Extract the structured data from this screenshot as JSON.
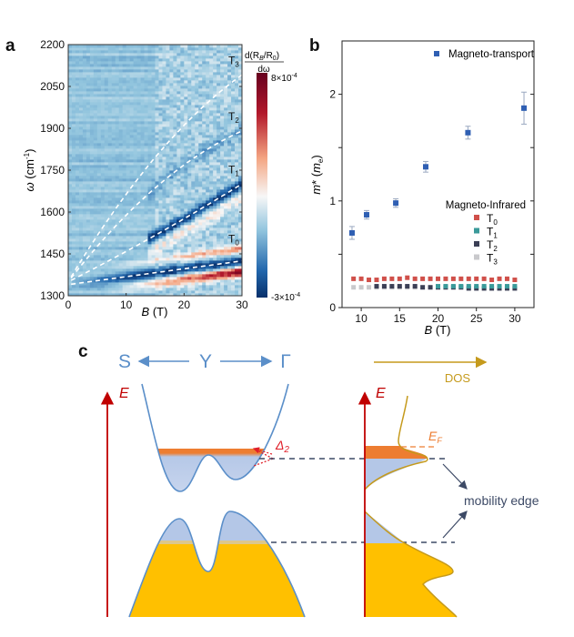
{
  "panel_labels": {
    "a": "a",
    "b": "b",
    "c": "c"
  },
  "chart_data": [
    {
      "panel": "a",
      "type": "heatmap",
      "xlabel_italic": "B",
      "xlabel_unit": " (T)",
      "ylabel_italic": "ω",
      "ylabel_unit": " (cm",
      "ylabel_sup": "-1",
      "ylabel_close": ")",
      "xlim": [
        0,
        30
      ],
      "ylim": [
        1300,
        2200
      ],
      "xticks": [
        "0",
        "10",
        "20",
        "30"
      ],
      "yticks": [
        "1300",
        "1450",
        "1600",
        "1750",
        "1900",
        "2050",
        "2200"
      ],
      "colorbar": {
        "label_num": "d(R",
        "label_num_sub1": "B",
        "label_num_mid": "/R",
        "label_num_sub2": "0",
        "label_num_close": ")",
        "label_den": "dω",
        "max_label": "8×10",
        "max_exp": "-4",
        "min_label": "-3×10",
        "min_exp": "-4",
        "range": [
          -0.0003,
          0.0008
        ],
        "colors": [
          "#08306b",
          "#2166ac",
          "#92c5de",
          "#f7f7f7",
          "#f4a582",
          "#b2182b",
          "#67001f"
        ]
      },
      "transitions": [
        {
          "name": "T",
          "sub": "0",
          "omega_at_30T": 1425
        },
        {
          "name": "T",
          "sub": "1",
          "omega_at_30T": 1700
        },
        {
          "name": "T",
          "sub": "2",
          "omega_at_30T": 1890
        },
        {
          "name": "T",
          "sub": "3",
          "omega_at_30T": 2090
        }
      ],
      "fit_line_color": "#ffffff"
    },
    {
      "panel": "b",
      "type": "scatter",
      "xlabel_italic": "B",
      "xlabel_unit": " (T)",
      "ylabel_italic": "m",
      "ylabel_mid": "* (",
      "ylabel_italic2": "m",
      "ylabel_sub": "e",
      "ylabel_close": ")",
      "xlim": [
        7.5,
        32.5
      ],
      "ylim": [
        0,
        2.5
      ],
      "xticks": [
        "10",
        "15",
        "20",
        "25",
        "30"
      ],
      "yticks": [
        "0",
        "1",
        "2"
      ],
      "legend_title_infrared": "Magneto-Infrared",
      "series": [
        {
          "name": "Magneto-transport",
          "color": "#2f5fb3",
          "x": [
            8.8,
            10.7,
            14.5,
            18.4,
            23.9,
            31.2
          ],
          "y": [
            0.7,
            0.87,
            0.98,
            1.32,
            1.64,
            1.87
          ],
          "err": [
            0.06,
            0.04,
            0.04,
            0.05,
            0.06,
            0.15
          ]
        },
        {
          "name": "T",
          "sub": "0",
          "color": "#d0504a",
          "x": [
            9,
            10,
            11,
            12,
            13,
            14,
            15,
            16,
            17,
            18,
            19,
            20,
            21,
            22,
            23,
            24,
            25,
            26,
            27,
            28,
            29,
            30
          ],
          "y": [
            0.27,
            0.27,
            0.26,
            0.26,
            0.27,
            0.27,
            0.27,
            0.28,
            0.27,
            0.27,
            0.27,
            0.27,
            0.27,
            0.27,
            0.27,
            0.27,
            0.27,
            0.27,
            0.26,
            0.27,
            0.27,
            0.26
          ]
        },
        {
          "name": "T",
          "sub": "1",
          "color": "#3a9a9a",
          "x": [
            20,
            21,
            22,
            23,
            24,
            25,
            26,
            27,
            28,
            29,
            30
          ],
          "y": [
            0.2,
            0.2,
            0.2,
            0.2,
            0.2,
            0.2,
            0.2,
            0.2,
            0.2,
            0.2,
            0.2
          ]
        },
        {
          "name": "T",
          "sub": "2",
          "color": "#3b3f55",
          "x": [
            12,
            13,
            14,
            15,
            16,
            17,
            18,
            19,
            20,
            21,
            22,
            23,
            24,
            25,
            26,
            27,
            28,
            29,
            30
          ],
          "y": [
            0.2,
            0.2,
            0.2,
            0.2,
            0.2,
            0.2,
            0.19,
            0.19,
            0.19,
            0.19,
            0.19,
            0.19,
            0.18,
            0.18,
            0.18,
            0.18,
            0.18,
            0.18,
            0.18
          ]
        },
        {
          "name": "T",
          "sub": "3",
          "color": "#c9c9cc",
          "x": [
            9,
            10,
            11,
            12,
            13,
            14,
            15,
            16,
            17
          ],
          "y": [
            0.19,
            0.19,
            0.19,
            0.19,
            0.19,
            0.19,
            0.19,
            0.19,
            0.19
          ]
        }
      ]
    }
  ],
  "diagram": {
    "k_labels": {
      "S": "S",
      "Y": "Y",
      "Gamma": "Γ"
    },
    "energy_label": "E",
    "dos_label": "DOS",
    "delta_label": "Δ",
    "delta_sub": "2",
    "ef_label": "E",
    "ef_sub": "F",
    "mobility_edge_label": "mobility edge",
    "colors": {
      "band": "#5b8fc9",
      "axis": "#c00000",
      "dos": "#c59a1c",
      "occupied": "#ffc000",
      "fermi": "#ed7d31",
      "localized": "#b4c7e7",
      "dashed": "#3d4a66"
    }
  }
}
